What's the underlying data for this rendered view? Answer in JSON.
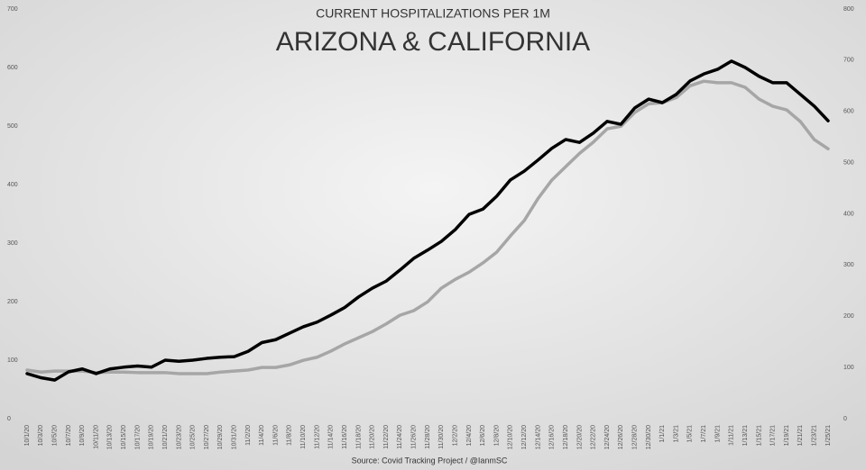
{
  "chart_data": {
    "type": "line",
    "title": "CURRENT HOSPITALIZATIONS PER 1M",
    "subtitle": "ARIZONA & CALIFORNIA",
    "source": "Source: Covid Tracking Project / @IanmSC",
    "categories": [
      "10/1/20",
      "10/3/20",
      "10/5/20",
      "10/7/20",
      "10/9/20",
      "10/11/20",
      "10/13/20",
      "10/15/20",
      "10/17/20",
      "10/19/20",
      "10/21/20",
      "10/23/20",
      "10/25/20",
      "10/27/20",
      "10/29/20",
      "10/31/20",
      "11/2/20",
      "11/4/20",
      "11/6/20",
      "11/8/20",
      "11/10/20",
      "11/12/20",
      "11/14/20",
      "11/16/20",
      "11/18/20",
      "11/20/20",
      "11/22/20",
      "11/24/20",
      "11/26/20",
      "11/28/20",
      "11/30/20",
      "12/2/20",
      "12/4/20",
      "12/6/20",
      "12/8/20",
      "12/10/20",
      "12/12/20",
      "12/14/20",
      "12/16/20",
      "12/18/20",
      "12/20/20",
      "12/22/20",
      "12/24/20",
      "12/26/20",
      "12/28/20",
      "12/30/20",
      "1/1/21",
      "1/3/21",
      "1/5/21",
      "1/7/21",
      "1/9/21",
      "1/11/21",
      "1/13/21",
      "1/15/21",
      "1/17/21",
      "1/19/21",
      "1/21/21",
      "1/23/21",
      "1/25/21"
    ],
    "series": [
      {
        "color": "#000000",
        "axis": "y",
        "values": [
          77,
          70,
          66,
          80,
          85,
          77,
          85,
          88,
          90,
          88,
          100,
          98,
          100,
          103,
          105,
          106,
          115,
          130,
          135,
          146,
          157,
          165,
          177,
          190,
          208,
          223,
          235,
          254,
          274,
          288,
          303,
          323,
          349,
          358,
          380,
          408,
          423,
          442,
          462,
          477,
          472,
          488,
          508,
          503,
          531,
          546,
          540,
          554,
          577,
          589,
          597,
          611,
          600,
          585,
          574,
          574,
          554,
          534,
          509
        ]
      },
      {
        "color": "#a6a6a6",
        "axis": "y2",
        "values": [
          95,
          91,
          93,
          93,
          93,
          90,
          91,
          91,
          90,
          90,
          90,
          88,
          88,
          88,
          91,
          93,
          95,
          100,
          100,
          105,
          114,
          120,
          132,
          146,
          158,
          170,
          185,
          202,
          211,
          228,
          255,
          272,
          286,
          304,
          325,
          357,
          387,
          430,
          466,
          492,
          518,
          540,
          566,
          571,
          598,
          615,
          617,
          627,
          650,
          659,
          656,
          656,
          647,
          624,
          610,
          603,
          580,
          545,
          527
        ]
      }
    ],
    "ylim": [
      0,
      700
    ],
    "yticks": [
      0,
      100,
      200,
      300,
      400,
      500,
      600,
      700
    ],
    "y2lim": [
      0,
      800
    ],
    "y2ticks": [
      0,
      100,
      200,
      300,
      400,
      500,
      600,
      700,
      800
    ],
    "grid": false
  }
}
